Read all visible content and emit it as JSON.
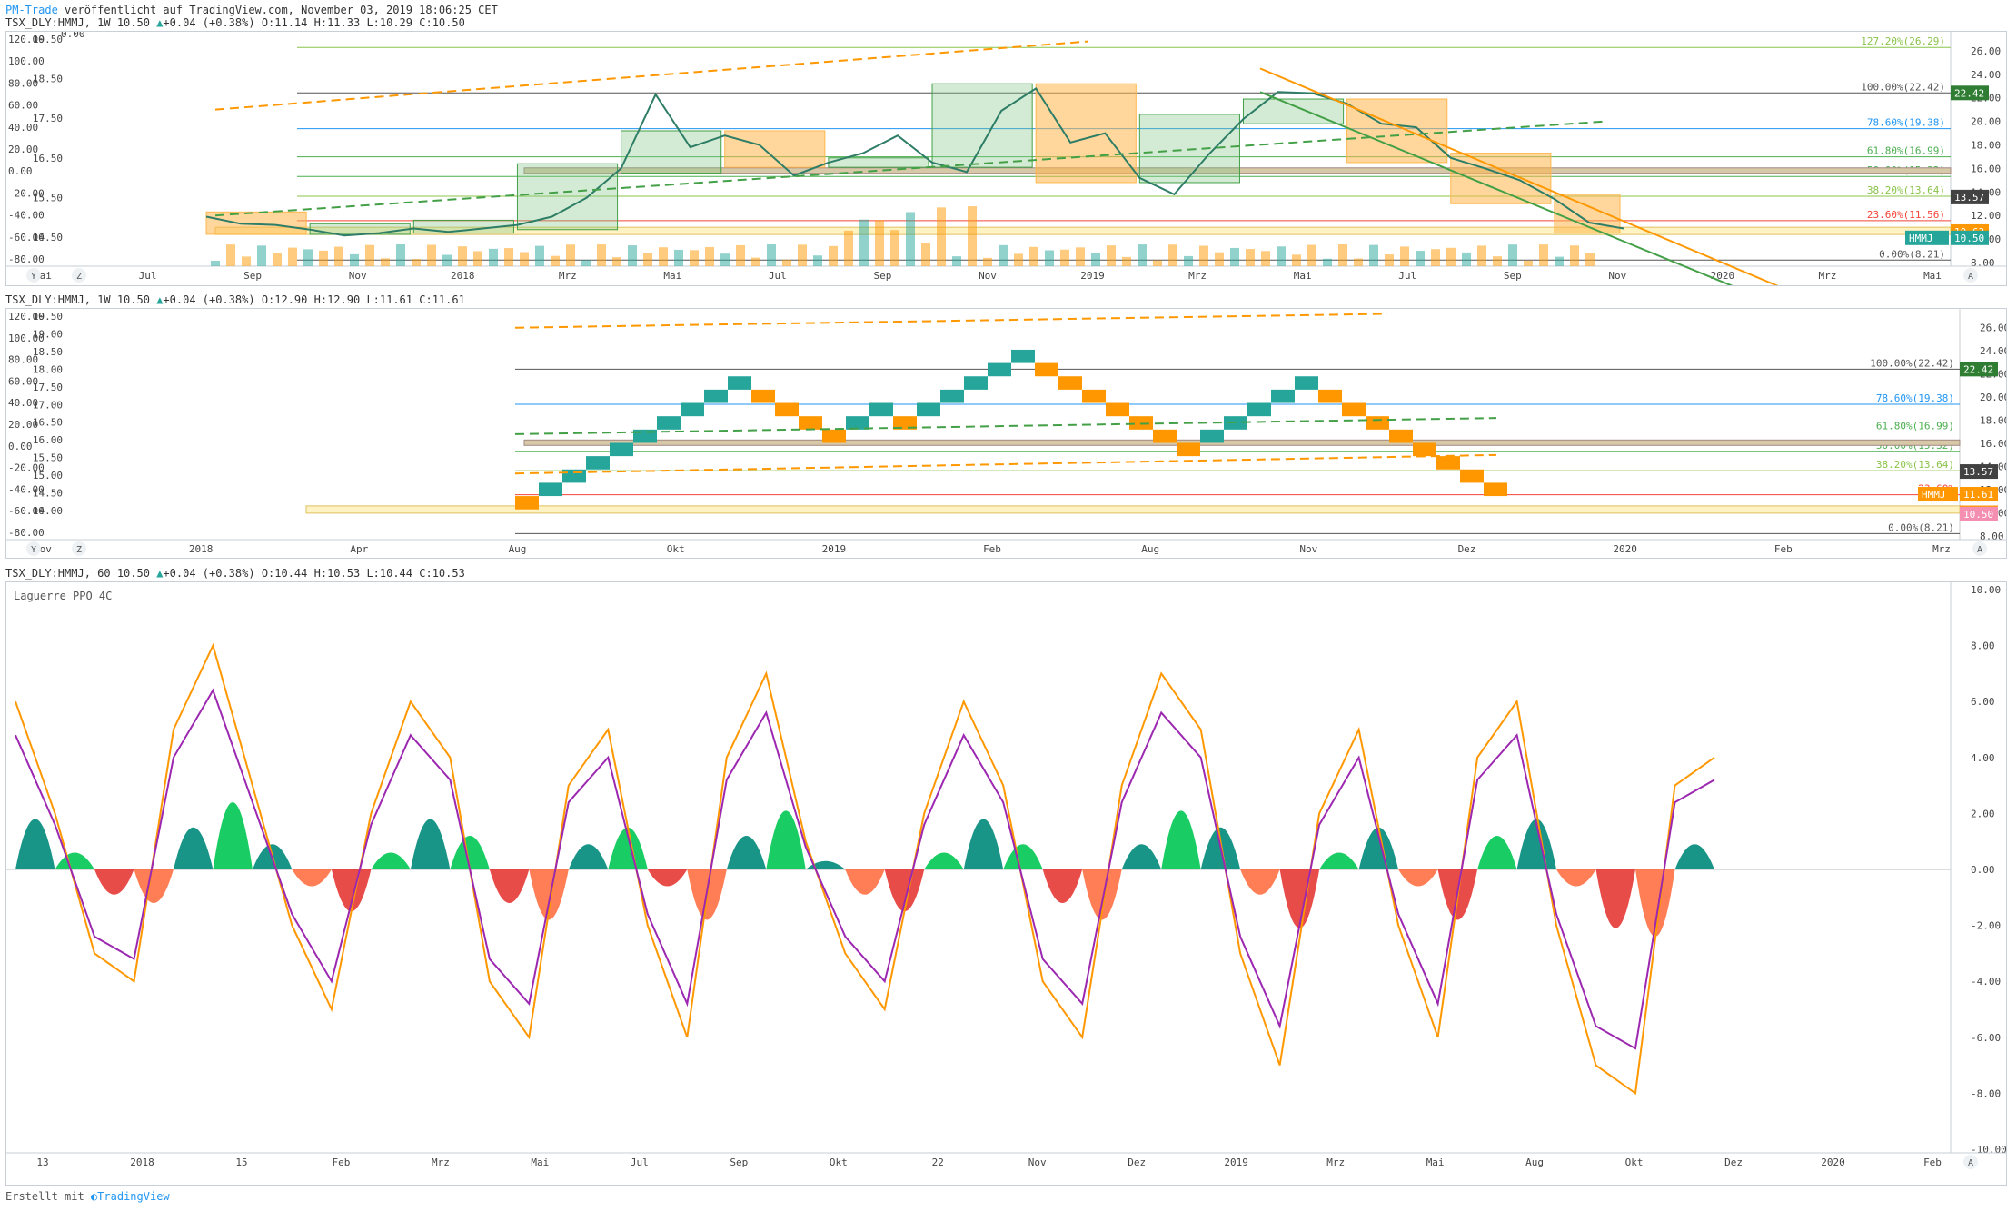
{
  "header": {
    "author": "PM-Trade",
    "published": "veröffentlicht auf TradingView.com, November 03, 2019 18:06:25 CET"
  },
  "footer": {
    "prefix": "Erstellt mit",
    "brand": "TradingView"
  },
  "colors": {
    "up": "#26a69a",
    "down": "#ff9800",
    "line": "#2e7d66",
    "laguerre_fast": "#ff9800",
    "laguerre_slow": "#9c27b0"
  },
  "panes": [
    {
      "id": "weekly",
      "symbol": "TSX_DLY:HMMJ, 1W 10.50",
      "change": "+0.04 (+0.38%)",
      "ohlc": {
        "o": "O:11.14",
        "h": "H:11.33",
        "l": "L:10.29",
        "c": "C:10.50"
      },
      "x_labels": [
        "Mai",
        "Jul",
        "Sep",
        "Nov",
        "2018",
        "Mrz",
        "Mai",
        "Jul",
        "Sep",
        "Nov",
        "2019",
        "Mrz",
        "Mai",
        "Jul",
        "Sep",
        "Nov",
        "2020",
        "Mrz",
        "Mai"
      ],
      "left_axis_outer": [
        "120.00",
        "100.00",
        "80.00",
        "60.00",
        "40.00",
        "20.00",
        "0.00",
        "-20.00",
        "-40.00",
        "-60.00",
        "-80.00"
      ],
      "left_axis_inner": [
        "19.50",
        "18.50",
        "17.50",
        "16.50",
        "15.50",
        "14.50"
      ],
      "right_axis": [
        "26.00",
        "24.00",
        "22.00",
        "20.00",
        "18.00",
        "16.00",
        "14.00",
        "12.00",
        "10.00",
        "8.00"
      ],
      "fib_labels": [
        "127.20%(26.29)",
        "100.00%(22.42)",
        "78.60%(19.38)",
        "61.80%(16.99)",
        "50.00%(15.32)",
        "38.20%(13.64)",
        "23.60%(11.56)",
        "0.00%(8.21)"
      ],
      "top_left_value": "0.00",
      "price_tags": [
        {
          "text": "22.42",
          "color": "#2e7d32"
        },
        {
          "text": "13.57",
          "color": "#424242"
        },
        {
          "text": "10.63",
          "color": "#ff9800"
        },
        {
          "text": "HMMJ",
          "color": "#26a69a"
        },
        {
          "text": "10.50",
          "color": "#26a69a"
        }
      ],
      "buttons": [
        "Y",
        "Z",
        "A"
      ]
    },
    {
      "id": "renko",
      "symbol": "TSX_DLY:HMMJ, 1W 10.50",
      "change": "+0.04 (+0.38%)",
      "ohlc": {
        "o": "O:12.90",
        "h": "H:12.90",
        "l": "L:11.61",
        "c": "C:11.61"
      },
      "x_labels": [
        "Nov",
        "2018",
        "Apr",
        "Aug",
        "Okt",
        "2019",
        "Feb",
        "Aug",
        "Nov",
        "Dez",
        "2020",
        "Feb",
        "Mrz"
      ],
      "left_axis_outer": [
        "120.00",
        "100.00",
        "80.00",
        "60.00",
        "40.00",
        "20.00",
        "0.00",
        "-20.00",
        "-40.00",
        "-60.00",
        "-80.00"
      ],
      "left_axis_inner": [
        "19.50",
        "19.00",
        "18.50",
        "18.00",
        "17.50",
        "17.00",
        "16.50",
        "16.00",
        "15.50",
        "15.00",
        "14.50",
        "14.00"
      ],
      "right_axis": [
        "26.00",
        "24.00",
        "22.00",
        "20.00",
        "18.00",
        "16.00",
        "14.00",
        "12.00",
        "10.00",
        "8.00"
      ],
      "fib_labels": [
        "100.00%(22.42)",
        "78.60%(19.38)",
        "61.80%(16.99)",
        "50.00%(15.32)",
        "38.20%(13.64)",
        "23.60%",
        "0.00%(8.21)"
      ],
      "price_tags": [
        {
          "text": "22.42",
          "color": "#2e7d32"
        },
        {
          "text": "13.57",
          "color": "#424242"
        },
        {
          "text": "HMMJ",
          "color": "#ff9800"
        },
        {
          "text": "11.61",
          "color": "#ff9800"
        },
        {
          "text": "10.63",
          "color": "#ff9800"
        },
        {
          "text": "10.50",
          "color": "#f48fb1"
        }
      ],
      "buttons": [
        "Y",
        "Z",
        "A"
      ]
    },
    {
      "id": "hourly",
      "symbol": "TSX_DLY:HMMJ, 60 10.50",
      "change": "+0.04 (+0.38%)",
      "ohlc": {
        "o": "O:10.44",
        "h": "H:10.53",
        "l": "L:10.44",
        "c": "C:10.53"
      },
      "indicator": "Laguerre PPO 4C",
      "x_labels": [
        "13",
        "2018",
        "15",
        "Feb",
        "Mrz",
        "Mai",
        "Jul",
        "Sep",
        "Okt",
        "22",
        "Nov",
        "Dez",
        "2019",
        "Mrz",
        "Mai",
        "Aug",
        "Okt",
        "Dez",
        "2020",
        "Feb"
      ],
      "right_axis": [
        "10.00",
        "8.00",
        "6.00",
        "4.00",
        "2.00",
        "0.00",
        "-2.00",
        "-4.00",
        "-6.00",
        "-8.00",
        "-10.00"
      ],
      "buttons": [
        "A"
      ]
    }
  ],
  "chart_data": [
    {
      "type": "candlestick",
      "title": "TSX_DLY:HMMJ, 1W",
      "x_labels": [
        "Mai",
        "Jul",
        "Sep",
        "Nov",
        "2018",
        "Mrz",
        "Mai",
        "Jul",
        "Sep",
        "Nov",
        "2019",
        "Mrz",
        "Mai",
        "Jul",
        "Sep",
        "Nov",
        "2020",
        "Mrz",
        "Mai"
      ],
      "ylim": [
        8,
        27
      ],
      "fib_levels": [
        26.29,
        22.42,
        19.38,
        16.99,
        15.32,
        13.64,
        11.56,
        8.21
      ],
      "close_line": [
        11.9,
        11.3,
        11.2,
        10.8,
        10.3,
        10.5,
        10.9,
        10.6,
        10.9,
        11.2,
        11.9,
        13.5,
        16.0,
        22.3,
        17.8,
        18.8,
        18.0,
        15.4,
        16.5,
        17.3,
        18.8,
        16.5,
        15.7,
        20.9,
        22.8,
        18.2,
        19.0,
        15.2,
        13.8,
        17.2,
        20.2,
        22.5,
        22.4,
        21.5,
        19.8,
        19.5,
        16.9,
        16.0,
        15.0,
        13.4,
        11.4,
        10.9
      ]
    },
    {
      "type": "renko",
      "title": "TSX_DLY:HMMJ, 1W",
      "ylim": [
        8,
        27
      ],
      "bricks": [
        "down",
        "up",
        "up",
        "up",
        "up",
        "up",
        "up",
        "up",
        "up",
        "up",
        "down",
        "down",
        "down",
        "down",
        "up",
        "up",
        "down",
        "up",
        "up",
        "up",
        "up",
        "up",
        "down",
        "down",
        "down",
        "down",
        "down",
        "down",
        "down",
        "up",
        "up",
        "up",
        "up",
        "up",
        "down",
        "down",
        "down",
        "down",
        "down",
        "down",
        "down",
        "down"
      ]
    },
    {
      "type": "area",
      "title": "Laguerre PPO 4C",
      "ylim": [
        -10,
        10
      ],
      "series": [
        {
          "name": "Laguerre PPO",
          "values": [
            6,
            2,
            -3,
            -4,
            5,
            8,
            3,
            -2,
            -5,
            2,
            6,
            4,
            -4,
            -6,
            3,
            5,
            -2,
            -6,
            4,
            7,
            1,
            -3,
            -5,
            2,
            6,
            3,
            -4,
            -6,
            3,
            7,
            5,
            -3,
            -7,
            2,
            5,
            -2,
            -6,
            4,
            6,
            -2,
            -7,
            -8,
            3,
            4
          ]
        }
      ]
    }
  ]
}
